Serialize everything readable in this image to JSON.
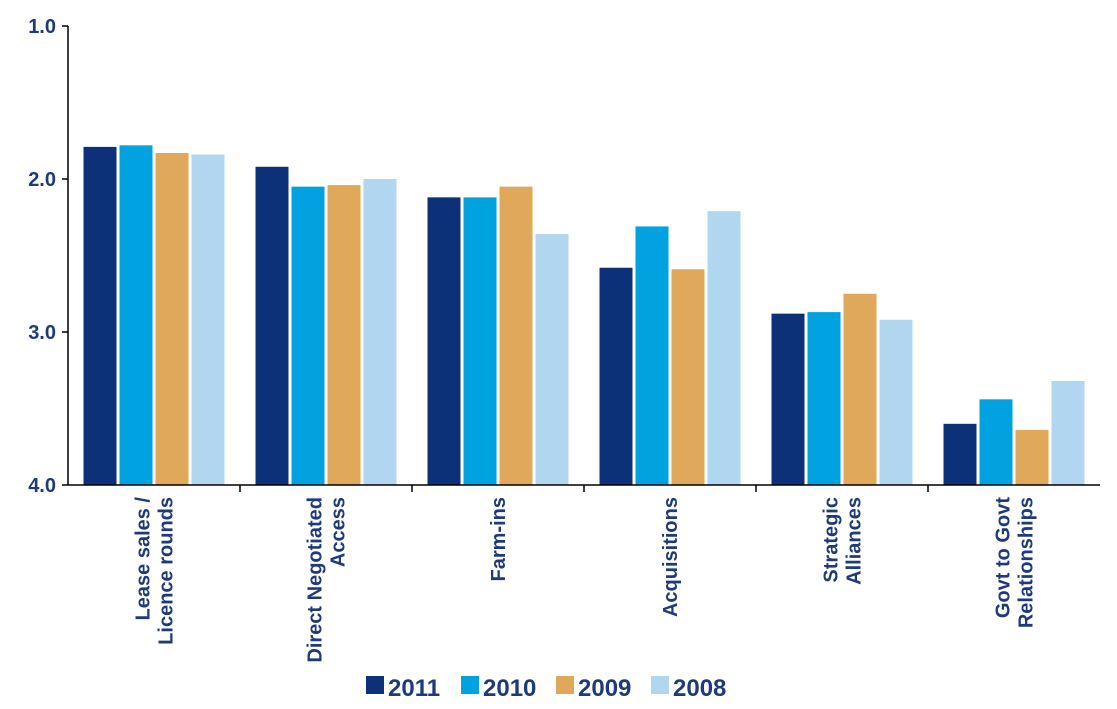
{
  "chart_data": {
    "type": "bar",
    "categories": [
      [
        "Lease sales /",
        "Licence rounds"
      ],
      [
        "Direct Negotiated",
        "Access"
      ],
      [
        "Farm-ins"
      ],
      [
        "Acquisitions"
      ],
      [
        "Strategic",
        "Alliances"
      ],
      [
        "Govt to Govt",
        "Relationships"
      ]
    ],
    "series": [
      {
        "name": "2011",
        "color": "#0d3178",
        "values": [
          1.79,
          1.92,
          2.12,
          2.58,
          2.88,
          3.6
        ]
      },
      {
        "name": "2010",
        "color": "#00a3e0",
        "values": [
          1.78,
          2.05,
          2.12,
          2.31,
          2.87,
          3.44
        ]
      },
      {
        "name": "2009",
        "color": "#e0a85a",
        "values": [
          1.83,
          2.04,
          2.05,
          2.59,
          2.75,
          3.64
        ]
      },
      {
        "name": "2008",
        "color": "#b0d6f0",
        "values": [
          1.84,
          2.0,
          2.36,
          2.21,
          2.92,
          3.32
        ]
      }
    ],
    "y_ticks": [
      "1.0",
      "2.0",
      "3.0",
      "4.0"
    ],
    "ylim": [
      1.0,
      4.0
    ],
    "y_inverted": true,
    "grid": false,
    "legend_position": "bottom-center",
    "title": "",
    "xlabel": "",
    "ylabel": ""
  }
}
